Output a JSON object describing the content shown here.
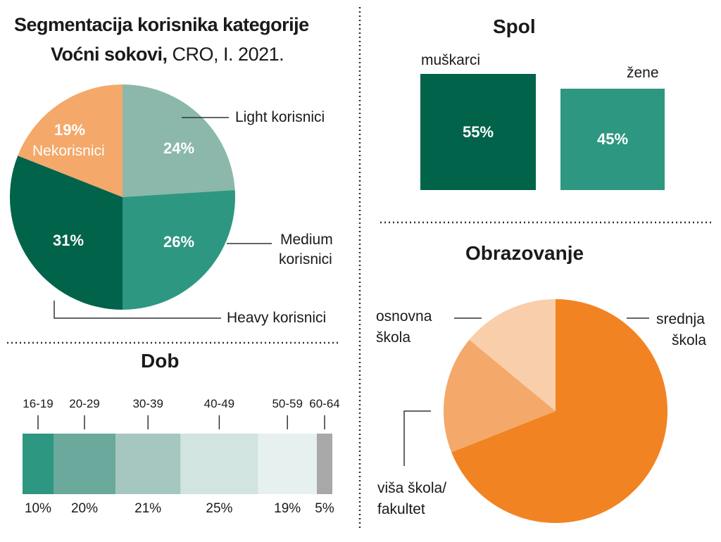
{
  "title": {
    "line1": "Segmentacija korisnika kategorije",
    "line2_bold": "Voćni sokovi,",
    "line2_rest": " CRO, I. 2021."
  },
  "colors": {
    "dark_green": "#01634a",
    "mid_green": "#2e9781",
    "light_green": "#8bb8aa",
    "peach": "#f4a86a",
    "orange": "#f28322",
    "orange_mid": "#f4a86a",
    "orange_light": "#f9ceaa",
    "age_1": "#2e9781",
    "age_2": "#6aa99b",
    "age_3": "#a6c7bf",
    "age_4": "#d1e4df",
    "age_5": "#e6f0ee",
    "age_6": "#a8a8a8"
  },
  "chart_data": [
    {
      "type": "pie",
      "title": "Segmentacija korisnika kategorije Voćni sokovi, CRO, I. 2021.",
      "slices": [
        {
          "name": "Light korisnici",
          "value": 24,
          "label": "24%",
          "color": "#8bb8aa"
        },
        {
          "name": "Medium korisnici",
          "value": 26,
          "label": "26%",
          "color": "#2e9781"
        },
        {
          "name": "Heavy korisnici",
          "value": 31,
          "label": "31%",
          "color": "#01634a"
        },
        {
          "name": "Nekorisnici",
          "value": 19,
          "label": "19%",
          "color": "#f4a86a"
        }
      ],
      "callouts": {
        "light": "Light korisnici",
        "medium_1": "Medium",
        "medium_2": "korisnici",
        "heavy": "Heavy korisnici",
        "nekorisnici": "Nekorisnici"
      }
    },
    {
      "type": "bar",
      "title": "Spol",
      "categories": [
        "muškarci",
        "žene"
      ],
      "values": [
        55,
        45
      ],
      "labels": [
        "55%",
        "45%"
      ],
      "colors": [
        "#01634a",
        "#2e9781"
      ]
    },
    {
      "type": "bar",
      "subtype": "stacked-horizontal",
      "title": "Dob",
      "categories": [
        "16-19",
        "20-29",
        "30-39",
        "40-49",
        "50-59",
        "60-64"
      ],
      "values": [
        10,
        20,
        21,
        25,
        19,
        5
      ],
      "labels": [
        "10%",
        "20%",
        "21%",
        "25%",
        "19%",
        "5%"
      ]
    },
    {
      "type": "pie",
      "title": "Obrazovanje",
      "slices": [
        {
          "name": "srednja škola",
          "value": 69,
          "color": "#f28322"
        },
        {
          "name": "viša škola/fakultet",
          "value": 17,
          "color": "#f4a86a"
        },
        {
          "name": "osnovna škola",
          "value": 14,
          "color": "#f9ceaa"
        }
      ],
      "callouts": {
        "srednja_1": "srednja",
        "srednja_2": "škola",
        "visa_1": "viša škola/",
        "visa_2": "fakultet",
        "osnovna_1": "osnovna",
        "osnovna_2": "škola"
      }
    }
  ]
}
